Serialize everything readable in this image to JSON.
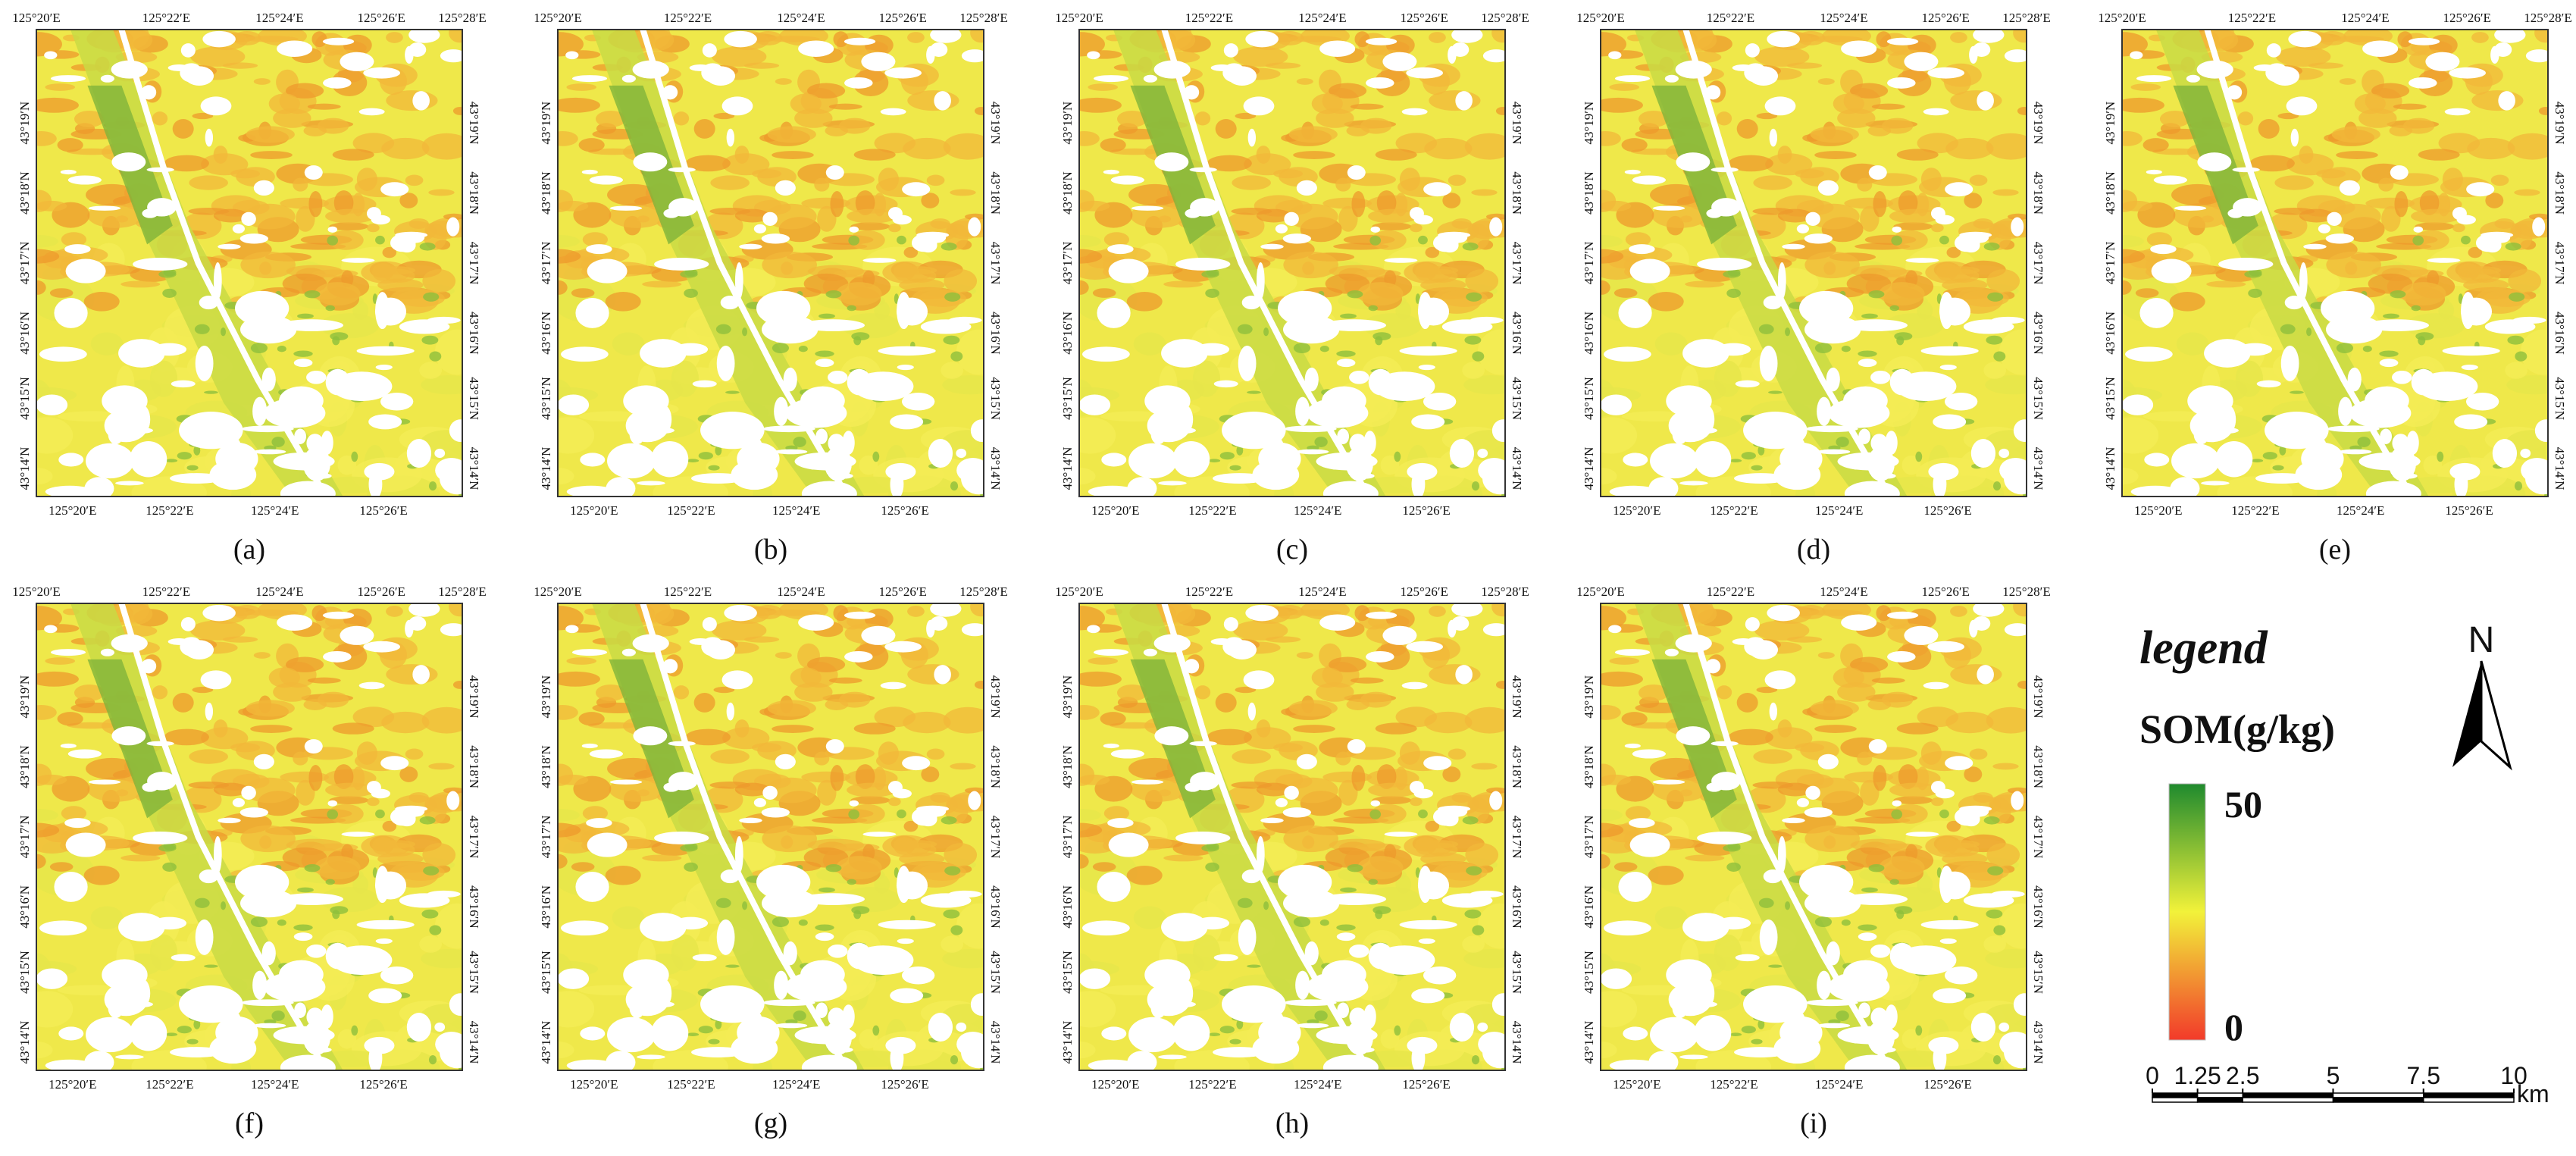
{
  "panels": [
    {
      "label": "(a)"
    },
    {
      "label": "(b)"
    },
    {
      "label": "(c)"
    },
    {
      "label": "(d)"
    },
    {
      "label": "(e)"
    },
    {
      "label": "(f)"
    },
    {
      "label": "(g)"
    },
    {
      "label": "(h)"
    },
    {
      "label": "(i)"
    }
  ],
  "map_axes": {
    "top": [
      "125°20′E",
      "125°22′E",
      "125°24′E",
      "125°26′E",
      "125°28′E"
    ],
    "bottom": [
      "125°20′E",
      "125°22′E",
      "125°24′E",
      "125°26′E"
    ],
    "left": [
      "43°19′N",
      "43°18′N",
      "43°17′N",
      "43°16′N",
      "43°15′N",
      "43°14′N"
    ],
    "right": [
      "43°19′N",
      "43°18′N",
      "43°17′N",
      "43°16′N",
      "43°15′N",
      "43°14′N"
    ]
  },
  "legend": {
    "title": "legend",
    "variable": "SOM(g/kg)",
    "max": 50,
    "min": 0
  },
  "north_arrow": {
    "label": "N"
  },
  "scale_bar": {
    "ticks": [
      0,
      1.25,
      2.5,
      5,
      7.5,
      10
    ],
    "unit": "km"
  }
}
